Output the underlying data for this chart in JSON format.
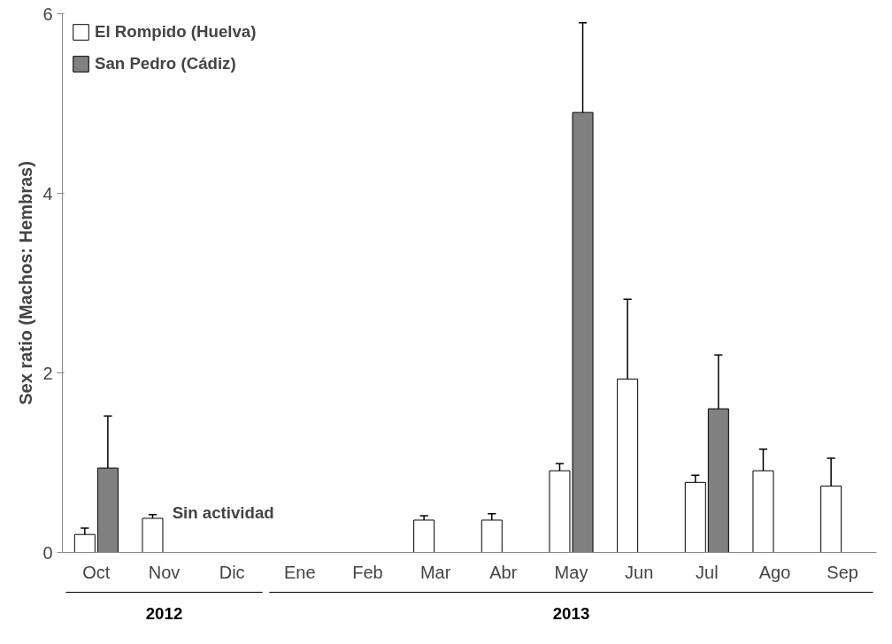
{
  "chart_data": {
    "type": "bar",
    "ylabel": "Sex ratio (Machos: Hembras)",
    "categories": [
      "Oct",
      "Nov",
      "Dic",
      "Ene",
      "Feb",
      "Mar",
      "Abr",
      "May",
      "Jun",
      "Jul",
      "Ago",
      "Sep"
    ],
    "series": [
      {
        "name": "El Rompido (Huelva)",
        "color": "#ffffff",
        "values": [
          0.2,
          0.38,
          null,
          null,
          null,
          0.36,
          0.36,
          0.91,
          1.93,
          0.78,
          0.91,
          0.74
        ],
        "errors": [
          [
            0.2,
            0.27
          ],
          [
            0.38,
            0.42
          ],
          null,
          null,
          null,
          [
            0.36,
            0.41
          ],
          [
            0.36,
            0.43
          ],
          [
            0.91,
            0.99
          ],
          [
            1.93,
            2.82
          ],
          [
            0.78,
            0.86
          ],
          [
            0.91,
            1.15
          ],
          [
            0.74,
            1.05
          ]
        ]
      },
      {
        "name": "San Pedro (Cádiz)",
        "color": "#808080",
        "values": [
          0.94,
          null,
          null,
          null,
          null,
          null,
          null,
          4.9,
          null,
          1.6,
          null,
          null
        ],
        "errors": [
          [
            0.94,
            1.52
          ],
          null,
          null,
          null,
          null,
          null,
          null,
          [
            4.9,
            5.9
          ],
          null,
          [
            1.6,
            2.2
          ],
          null,
          null
        ]
      }
    ],
    "ylim": [
      0,
      6
    ],
    "yticks": [
      0,
      2,
      4,
      6
    ],
    "grid": false,
    "legend": "top left",
    "annotations": [
      "Sin actividad",
      "2012",
      "2013"
    ]
  }
}
